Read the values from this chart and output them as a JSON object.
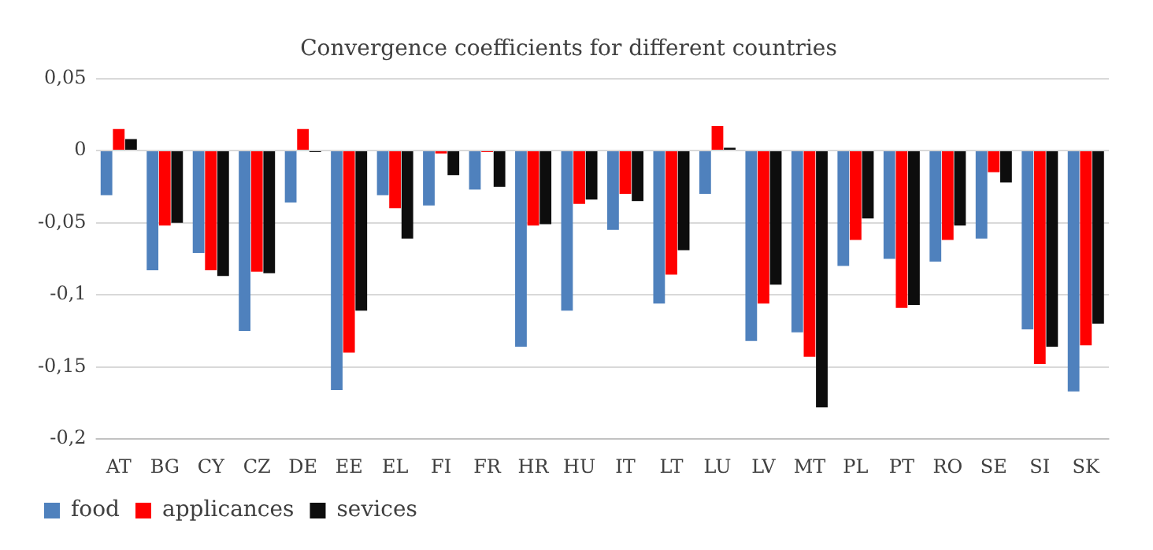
{
  "chart_data": {
    "type": "bar",
    "title": "Convergence coefficients for different countries",
    "categories": [
      "AT",
      "BG",
      "CY",
      "CZ",
      "DE",
      "EE",
      "EL",
      "FI",
      "FR",
      "HR",
      "HU",
      "IT",
      "LT",
      "LU",
      "LV",
      "MT",
      "PL",
      "PT",
      "RO",
      "SE",
      "SI",
      "SK"
    ],
    "series": [
      {
        "name": "food",
        "color": "#4f81bd",
        "values": [
          -0.031,
          -0.083,
          -0.071,
          -0.125,
          -0.036,
          -0.166,
          -0.031,
          -0.038,
          -0.027,
          -0.136,
          -0.111,
          -0.055,
          -0.106,
          -0.03,
          -0.132,
          -0.126,
          -0.08,
          -0.075,
          -0.077,
          -0.061,
          -0.124,
          -0.167
        ]
      },
      {
        "name": "applicances",
        "color": "#ff0000",
        "values": [
          0.015,
          -0.052,
          -0.083,
          -0.084,
          0.015,
          -0.14,
          -0.04,
          -0.002,
          -0.001,
          -0.052,
          -0.037,
          -0.03,
          -0.086,
          0.017,
          -0.106,
          -0.143,
          -0.062,
          -0.109,
          -0.062,
          -0.015,
          -0.148,
          -0.135
        ]
      },
      {
        "name": "sevices",
        "color": "#0d0d0d",
        "values": [
          0.008,
          -0.05,
          -0.087,
          -0.085,
          -0.001,
          -0.111,
          -0.061,
          -0.017,
          -0.025,
          -0.051,
          -0.034,
          -0.035,
          -0.069,
          0.002,
          -0.093,
          -0.178,
          -0.047,
          -0.107,
          -0.052,
          -0.022,
          -0.136,
          -0.12
        ]
      }
    ],
    "ylim": [
      -0.2,
      0.05
    ],
    "yticks": [
      {
        "value": -0.2,
        "label": "-0,2"
      },
      {
        "value": -0.15,
        "label": "-0,15"
      },
      {
        "value": -0.1,
        "label": "-0,1"
      },
      {
        "value": -0.05,
        "label": "-0,05"
      },
      {
        "value": 0,
        "label": "0"
      },
      {
        "value": 0.05,
        "label": "0,05"
      }
    ],
    "grid": "y",
    "legend": "bottom left"
  }
}
